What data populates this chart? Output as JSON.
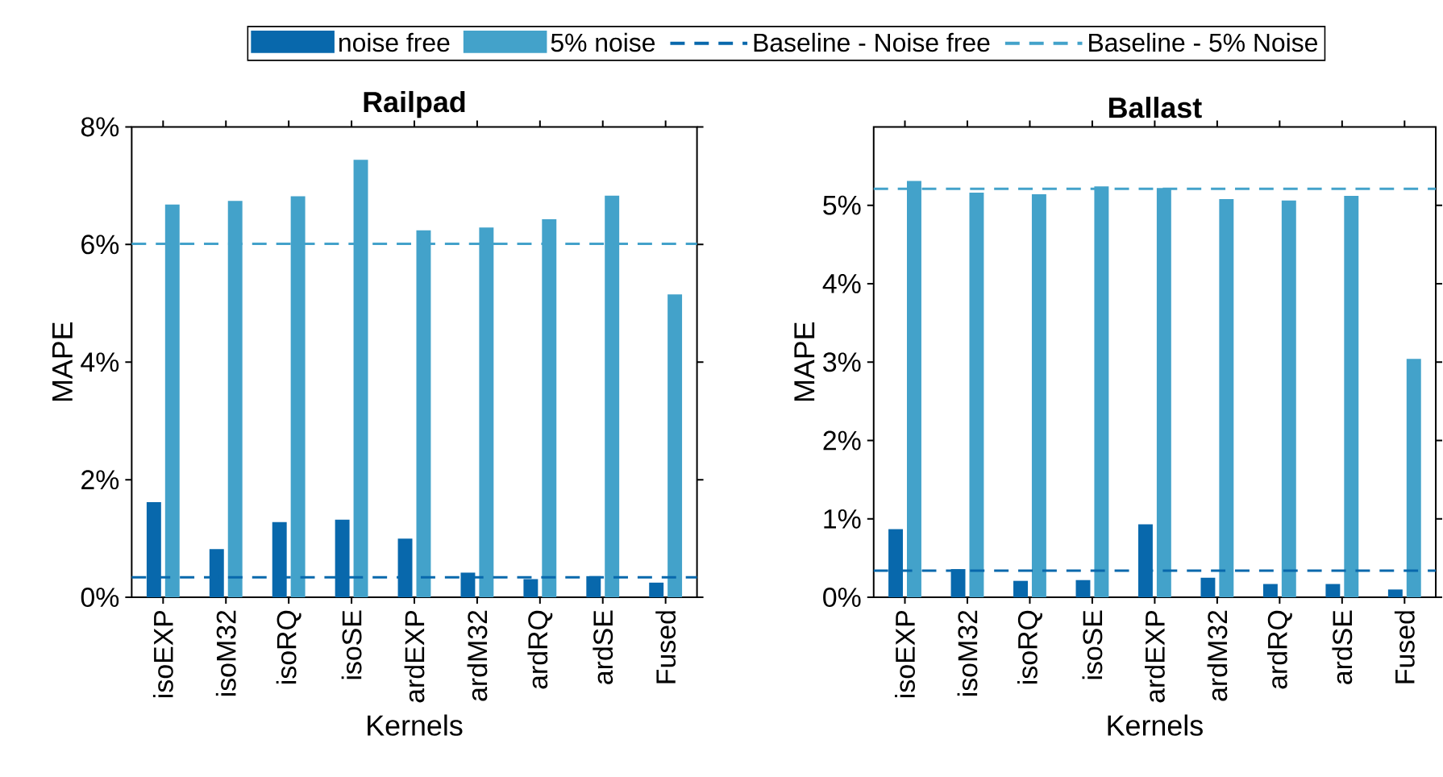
{
  "chart_data": [
    {
      "type": "bar",
      "title": "Railpad",
      "xlabel": "Kernels",
      "ylabel": "MAPE",
      "legend": "top",
      "categories": [
        "isoEXP",
        "isoM32",
        "isoRQ",
        "isoSE",
        "ardEXP",
        "ardM32",
        "ardRQ",
        "ardSE",
        "Fused"
      ],
      "series": [
        {
          "name": "noise free",
          "color": "#0868ac",
          "values": [
            1.62,
            0.82,
            1.28,
            1.32,
            1.0,
            0.42,
            0.31,
            0.36,
            0.25
          ]
        },
        {
          "name": "5% noise",
          "color": "#43a2ca",
          "values": [
            6.68,
            6.74,
            6.82,
            7.44,
            6.24,
            6.29,
            6.43,
            6.83,
            5.15
          ]
        }
      ],
      "ref_lines": [
        {
          "axis": "y",
          "value": 0.34,
          "label": "Baseline - Noise free",
          "color": "#0868ac",
          "line_style": "dashed"
        },
        {
          "axis": "y",
          "value": 6.01,
          "label": "Baseline - 5% Noise",
          "color": "#43a2ca",
          "line_style": "dashed"
        }
      ],
      "ylim": [
        0,
        8
      ],
      "yticks": [
        {
          "value": 0,
          "label": "0%"
        },
        {
          "value": 2,
          "label": "2%"
        },
        {
          "value": 4,
          "label": "4%"
        },
        {
          "value": 6,
          "label": "6%"
        },
        {
          "value": 8,
          "label": "8%"
        }
      ]
    },
    {
      "type": "bar",
      "title": "Ballast",
      "xlabel": "Kernels",
      "ylabel": "MAPE",
      "categories": [
        "isoEXP",
        "isoM32",
        "isoRQ",
        "isoSE",
        "ardEXP",
        "ardM32",
        "ardRQ",
        "ardSE",
        "Fused"
      ],
      "series": [
        {
          "color": "#0868ac",
          "values": [
            0.87,
            0.36,
            0.21,
            0.22,
            0.93,
            0.25,
            0.17,
            0.17,
            0.1
          ]
        },
        {
          "color": "#43a2ca",
          "values": [
            5.31,
            5.16,
            5.14,
            5.24,
            5.22,
            5.08,
            5.06,
            5.12,
            3.04
          ]
        }
      ],
      "ref_lines": [
        {
          "axis": "y",
          "value": 0.34,
          "color": "#0868ac",
          "line_style": "dashed"
        },
        {
          "axis": "y",
          "value": 5.21,
          "color": "#43a2ca",
          "line_style": "dashed"
        }
      ],
      "ylim": [
        0,
        6
      ],
      "yticks": [
        {
          "value": 0,
          "label": "0%"
        },
        {
          "value": 1,
          "label": "1%"
        },
        {
          "value": 2,
          "label": "2%"
        },
        {
          "value": 3,
          "label": "3%"
        },
        {
          "value": 4,
          "label": "4%"
        },
        {
          "value": 5,
          "label": "5%"
        }
      ]
    }
  ]
}
